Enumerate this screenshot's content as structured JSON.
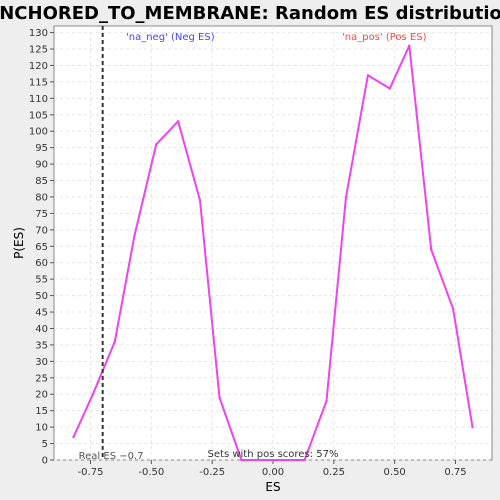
{
  "chart_data": {
    "type": "line",
    "title": "ANCHORED_TO_MEMBRANE: Random ES distribution",
    "xlabel": "ES",
    "ylabel": "P(ES)",
    "xlim": [
      -0.9,
      0.9
    ],
    "ylim": [
      0,
      132
    ],
    "x_ticks": [
      -0.75,
      -0.5,
      -0.25,
      0.0,
      0.25,
      0.5,
      0.75
    ],
    "x_tick_labels": [
      "-0.75",
      "-0.50",
      "-0.25",
      "0.00",
      "0.25",
      "0.50",
      "0.75"
    ],
    "y_ticks": [
      0,
      5,
      10,
      15,
      20,
      25,
      30,
      35,
      40,
      45,
      50,
      55,
      60,
      65,
      70,
      75,
      80,
      85,
      90,
      95,
      100,
      105,
      110,
      115,
      120,
      125,
      130
    ],
    "grid": true,
    "series": [
      {
        "color": "#ee44ee",
        "x": [
          -0.82,
          -0.74,
          -0.65,
          -0.57,
          -0.48,
          -0.39,
          -0.3,
          -0.22,
          -0.13,
          -0.04,
          0.04,
          0.13,
          0.22,
          0.3,
          0.39,
          0.48,
          0.56,
          0.65,
          0.74,
          0.82
        ],
        "y": [
          7,
          20,
          36,
          68,
          96,
          103,
          79,
          19,
          0,
          0,
          0,
          0,
          18,
          80,
          117,
          113,
          126,
          64,
          46,
          10
        ]
      }
    ],
    "real_es": {
      "x": -0.7,
      "label": "Real ES −0.7"
    },
    "annotations": {
      "neg": {
        "text": "'na_neg' (Neg ES)",
        "color": "#4444ff"
      },
      "pos": {
        "text": "'na_pos' (Pos ES)",
        "color": "#ff4444"
      },
      "footer": "Sets with pos scores: 57%"
    }
  }
}
